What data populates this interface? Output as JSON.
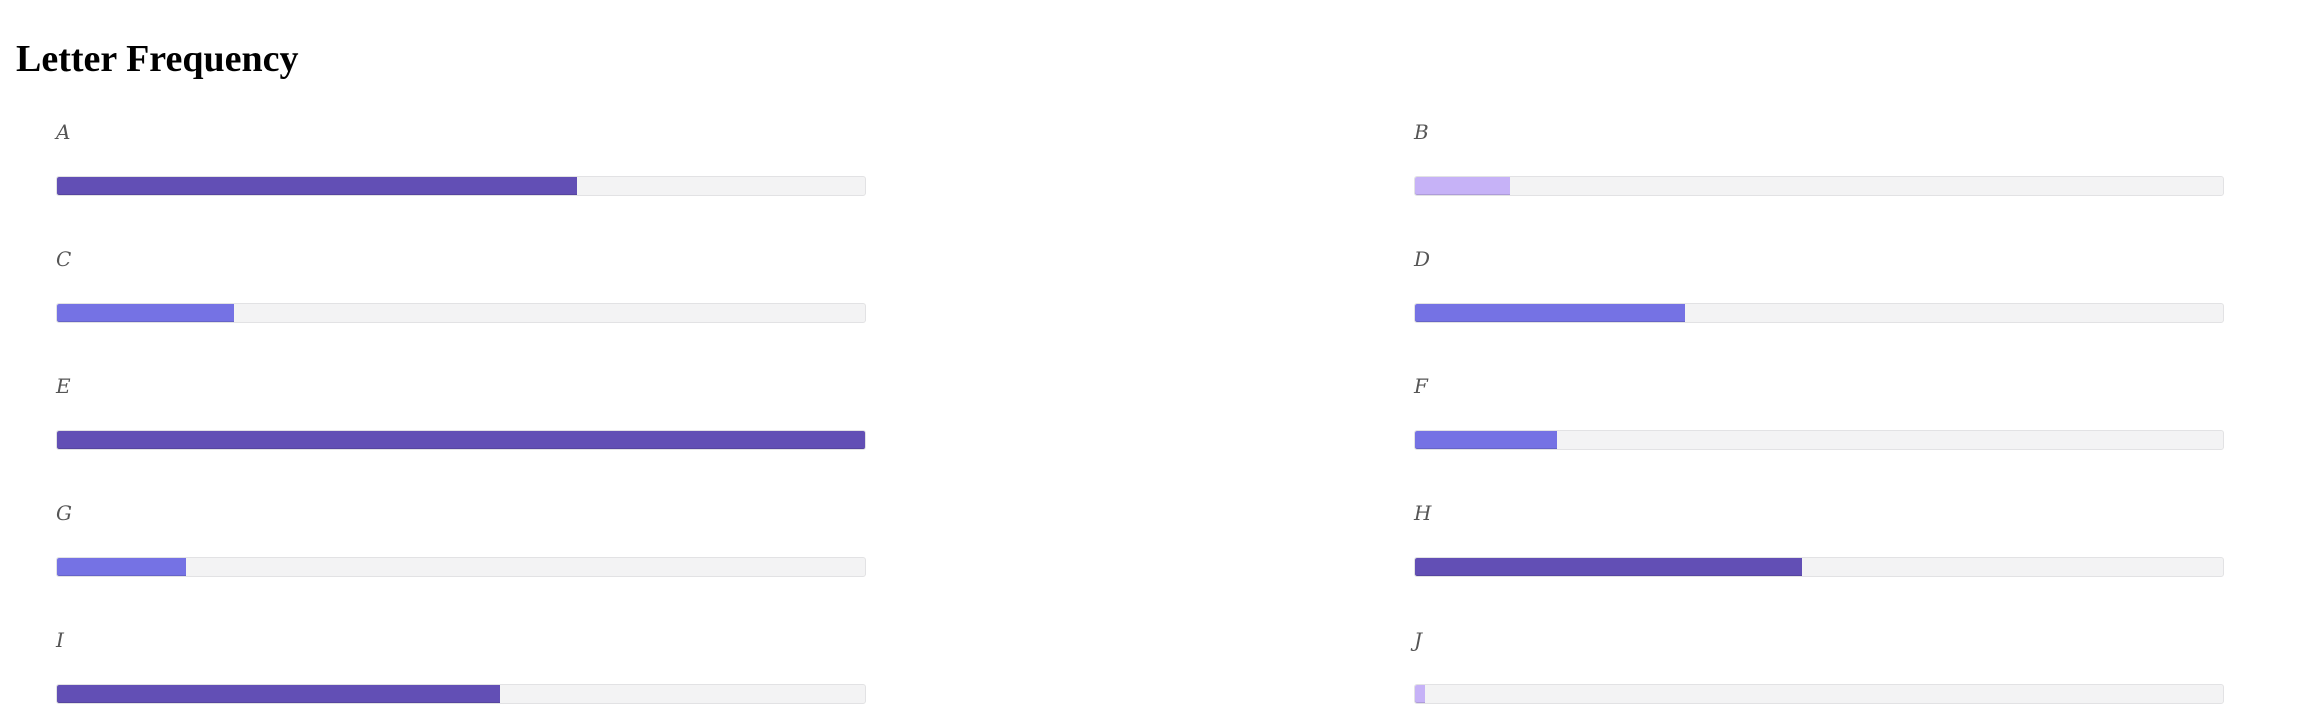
{
  "page": {
    "title": "Letter Frequency"
  },
  "colors": {
    "high": "#624fb5",
    "mid": "#7572e4",
    "low": "#c6b2f7",
    "track": "#f3f3f4"
  },
  "chart_data": {
    "type": "bar",
    "orientation": "horizontal",
    "layout": "two-column grid",
    "title": "Letter Frequency",
    "xlim": [
      0,
      12.7
    ],
    "categories": [
      "A",
      "B",
      "C",
      "D",
      "E",
      "F",
      "G",
      "H",
      "I",
      "J"
    ],
    "values": [
      8.17,
      1.49,
      2.78,
      4.25,
      12.7,
      2.23,
      2.02,
      6.09,
      6.97,
      0.15
    ],
    "bar_colors": [
      "#624fb5",
      "#c6b2f7",
      "#7572e4",
      "#7572e4",
      "#624fb5",
      "#7572e4",
      "#7572e4",
      "#624fb5",
      "#624fb5",
      "#c6b2f7"
    ]
  }
}
